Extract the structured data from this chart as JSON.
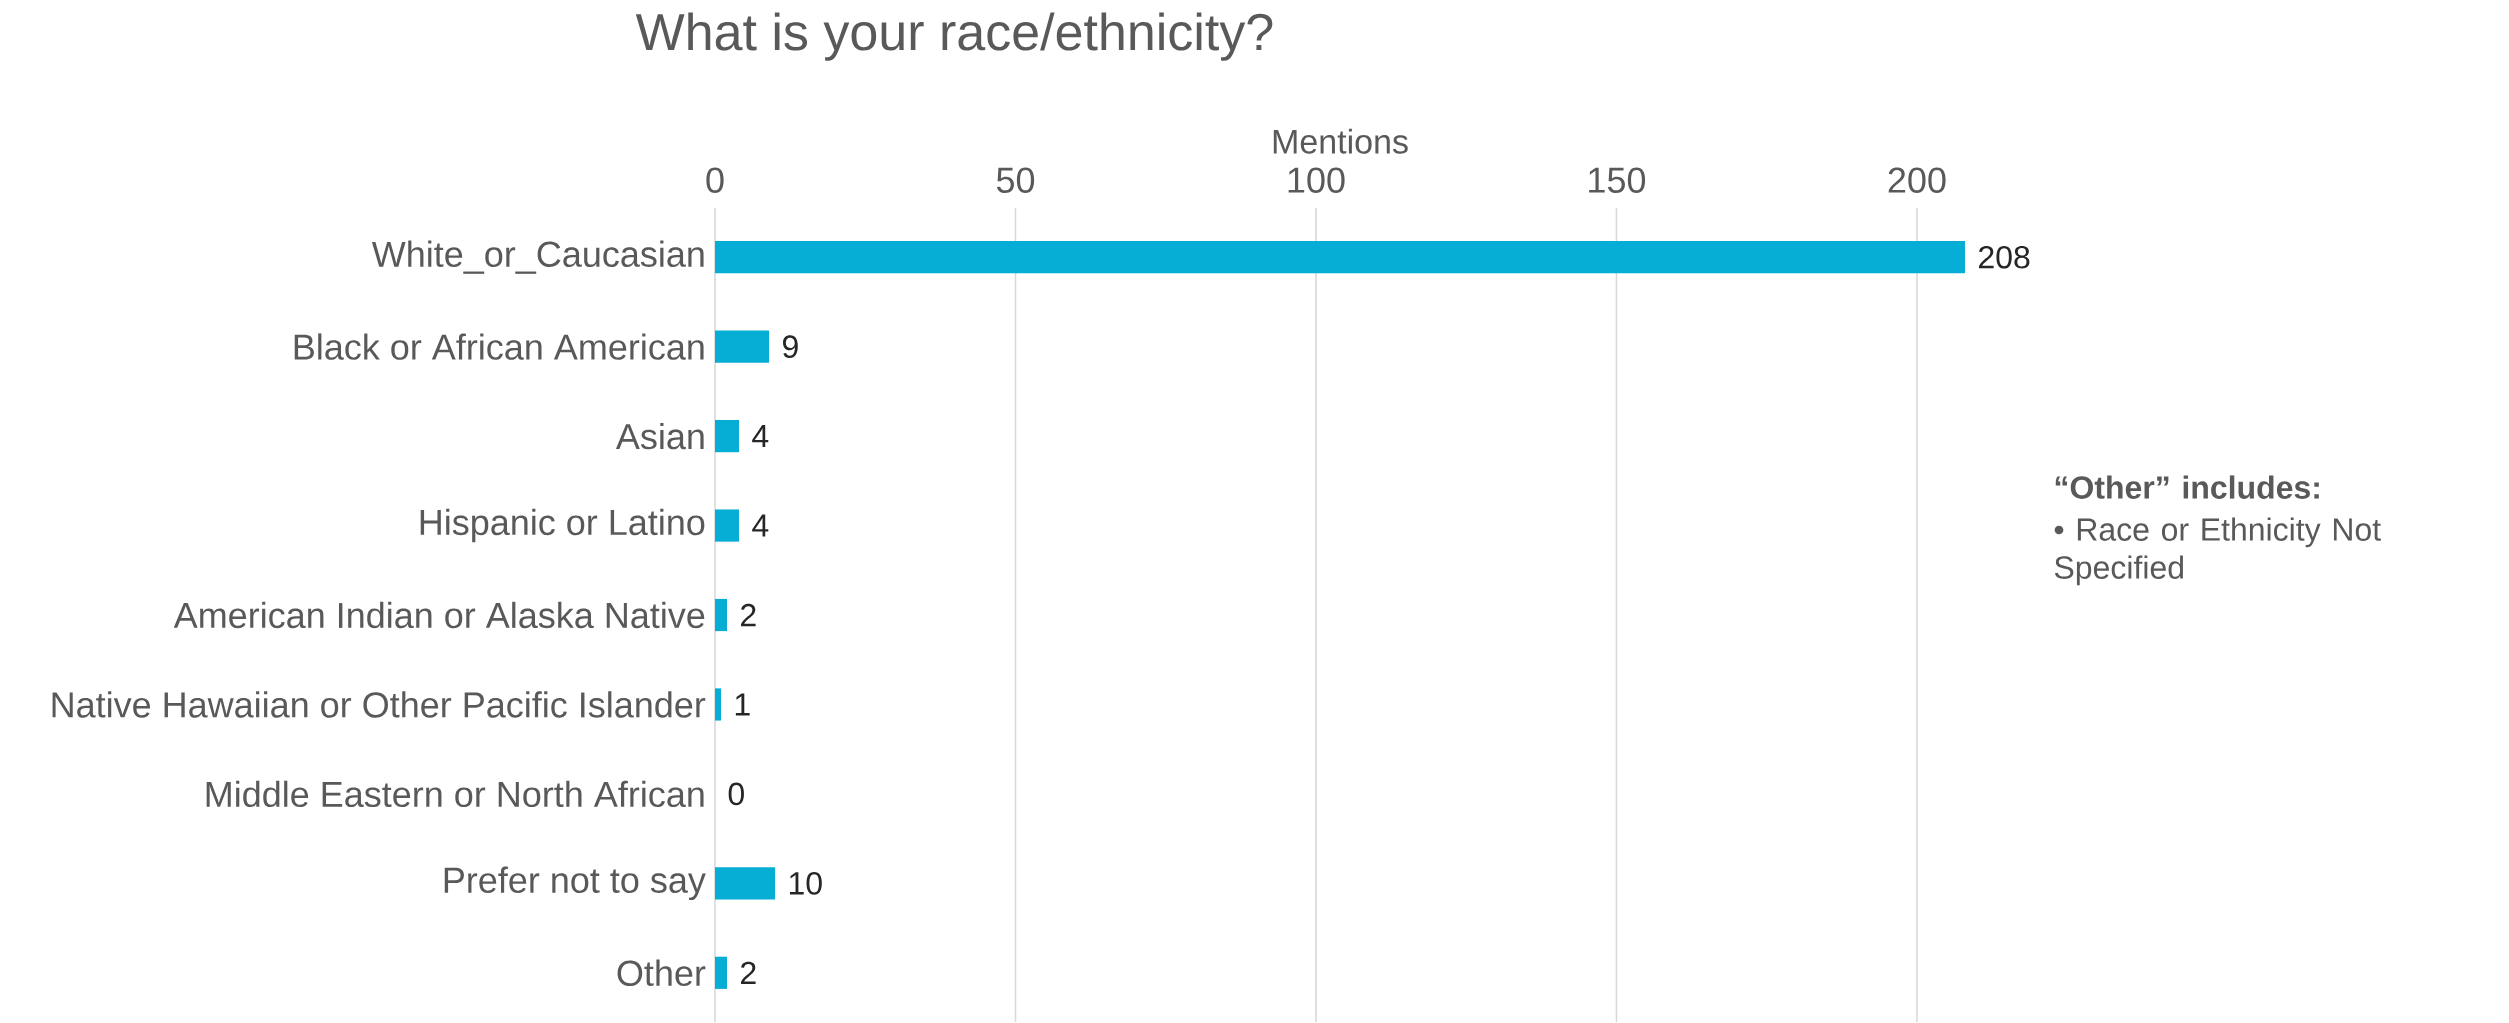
{
  "chart_data": {
    "type": "bar",
    "orientation": "horizontal",
    "title": "What is your race/ethnicity?",
    "xlabel": "Mentions",
    "categories": [
      "White_or_Caucasian",
      "Black or African American",
      "Asian",
      "Hispanic or Latino",
      "American Indian or Alaska Native",
      "Native Hawaiian or Other Pacific Islander",
      "Middle Eastern or North African",
      "Prefer not to say",
      "Other"
    ],
    "values": [
      208,
      9,
      4,
      4,
      2,
      1,
      0,
      10,
      2
    ],
    "color": "#06aed5",
    "xlim": [
      0,
      208
    ],
    "xticks": [
      0,
      50,
      100,
      150,
      200
    ],
    "grid": "x",
    "data_labels": true,
    "annotations": [
      "“Other” includes:",
      "• Race or Ethnicity Not Specified"
    ]
  }
}
